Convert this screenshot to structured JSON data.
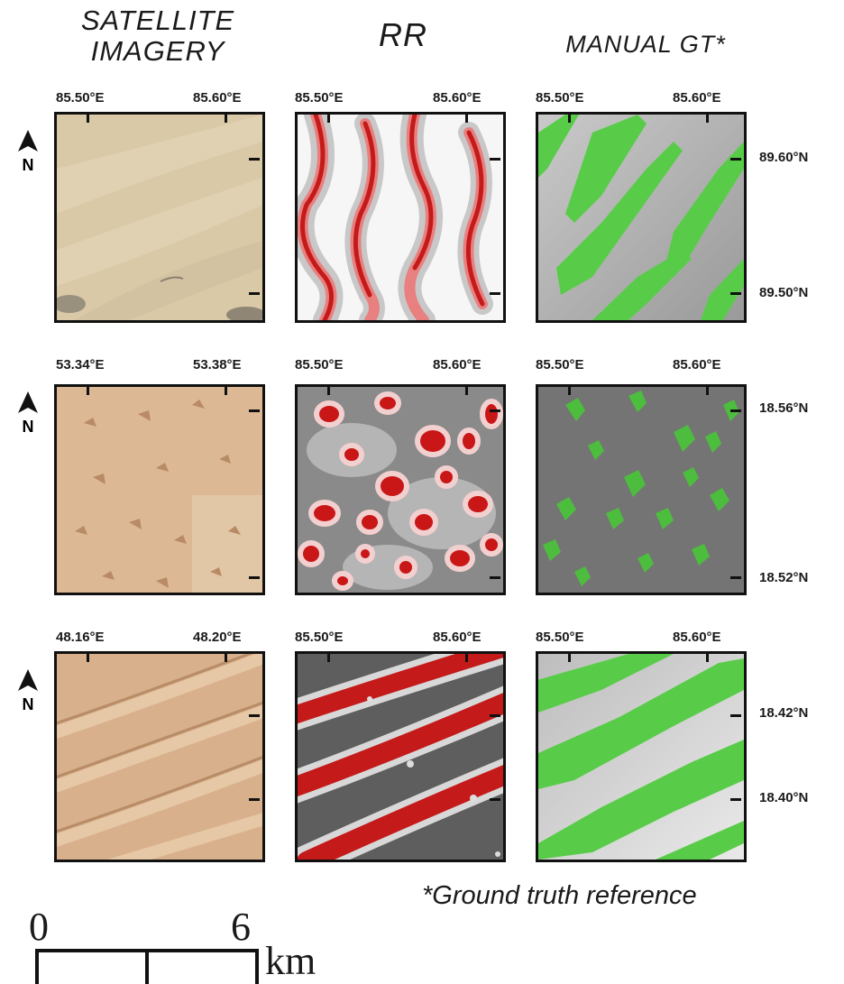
{
  "headers": {
    "satellite": "SATELLITE IMAGERY",
    "rr": "RR",
    "manual_gt": "MANUAL GT*"
  },
  "rows": [
    {
      "sat_lon": [
        "85.50°E",
        "85.60°E"
      ],
      "rr_lon": [
        "85.50°E",
        "85.60°E"
      ],
      "gt_lon": [
        "85.50°E",
        "85.60°E"
      ],
      "lat": [
        "89.60°N",
        "89.50°N"
      ]
    },
    {
      "sat_lon": [
        "53.34°E",
        "53.38°E"
      ],
      "rr_lon": [
        "85.50°E",
        "85.60°E"
      ],
      "gt_lon": [
        "85.50°E",
        "85.60°E"
      ],
      "lat": [
        "18.56°N",
        "18.52°N"
      ]
    },
    {
      "sat_lon": [
        "48.16°E",
        "48.20°E"
      ],
      "rr_lon": [
        "85.50°E",
        "85.60°E"
      ],
      "gt_lon": [
        "85.50°E",
        "85.60°E"
      ],
      "lat": [
        "18.42°N",
        "18.40°N"
      ]
    }
  ],
  "north_label": "N",
  "footnote": "*Ground truth reference",
  "scale": {
    "start": "0",
    "end": "6",
    "unit": "km"
  },
  "colors": {
    "sand": "#d8c8a8",
    "rr_red": "#cc1f1f",
    "gt_green": "#5ccf4a",
    "gray": "#7a7a7a"
  }
}
